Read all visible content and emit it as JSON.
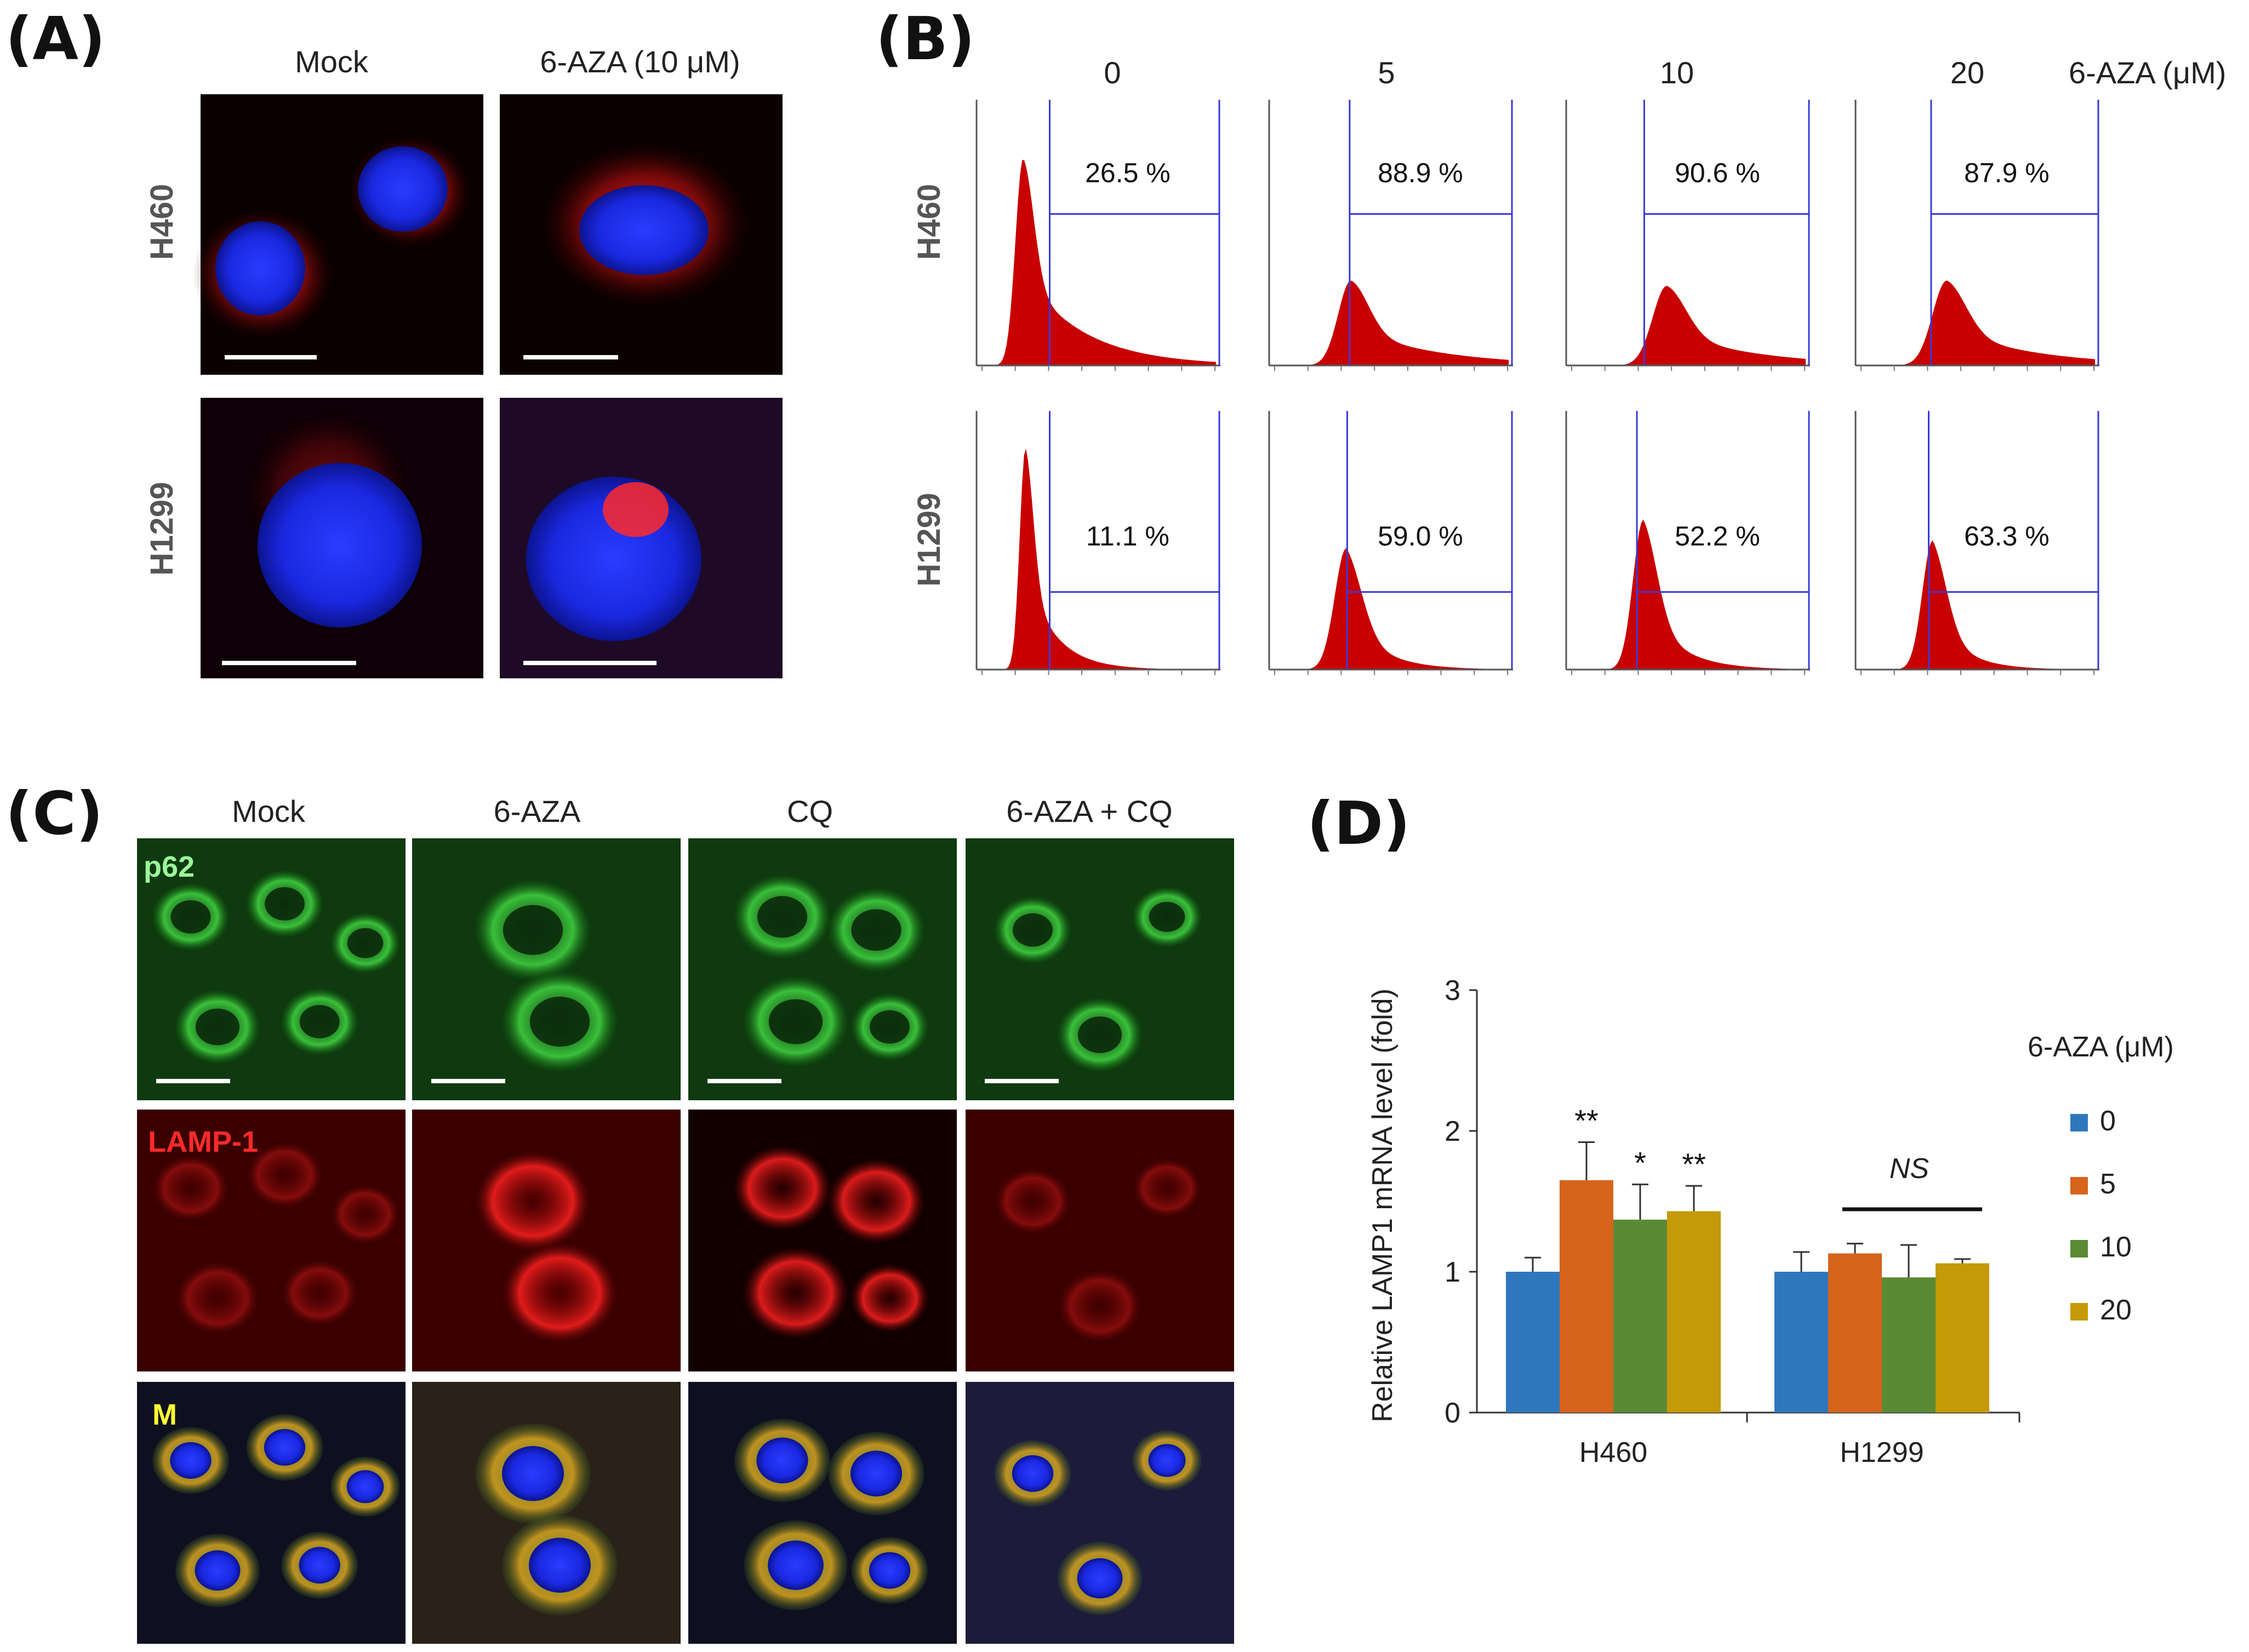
{
  "panel_a": {
    "label": "(A)",
    "col_headers": [
      "Mock",
      "6-AZA (10 μM)"
    ],
    "row_headers": [
      "H460",
      "H1299"
    ]
  },
  "panel_b": {
    "label": "(B)",
    "doses": [
      "0",
      "5",
      "10",
      "20"
    ],
    "dose_unit": "6-AZA (μM)",
    "row_headers": [
      "H460",
      "H1299"
    ],
    "percentages": [
      [
        "26.5 %",
        "88.9 %",
        "90.6 %",
        "87.9 %"
      ],
      [
        "11.1 %",
        "59.0 %",
        "52.2 %",
        "63.3 %"
      ]
    ]
  },
  "panel_c": {
    "label": "(C)",
    "col_headers": [
      "Mock",
      "6-AZA",
      "CQ",
      "6-AZA + CQ"
    ],
    "channels": [
      "p62",
      "LAMP-1",
      "M"
    ],
    "channel_colors": [
      "#9cf79c",
      "#ff2a2a",
      "#ffff33"
    ]
  },
  "panel_d": {
    "label": "(D)",
    "legend_title": "6-AZA (μM)",
    "significance": {
      "h460": [
        "",
        "**",
        "*",
        "**"
      ],
      "h1299": "NS"
    }
  },
  "chart_data": {
    "type": "bar",
    "title": "",
    "categories": [
      "H460",
      "H1299"
    ],
    "series": [
      {
        "name": "0",
        "color": "#2f77bd",
        "values": [
          1.0,
          1.0
        ],
        "errors": [
          0.1,
          0.14
        ]
      },
      {
        "name": "5",
        "color": "#d6641a",
        "values": [
          1.65,
          1.13
        ],
        "errors": [
          0.27,
          0.07
        ]
      },
      {
        "name": "10",
        "color": "#5b8a35",
        "values": [
          1.37,
          0.96
        ],
        "errors": [
          0.25,
          0.23
        ]
      },
      {
        "name": "20",
        "color": "#c49a06",
        "values": [
          1.43,
          1.06
        ],
        "errors": [
          0.18,
          0.03
        ]
      }
    ],
    "xlabel": "",
    "ylabel": "Relative LAMP1 mRNA level (fold)",
    "ylim": [
      0,
      3
    ],
    "yticks": [
      "0",
      "1",
      "2",
      "3"
    ],
    "legend_position": "right"
  }
}
